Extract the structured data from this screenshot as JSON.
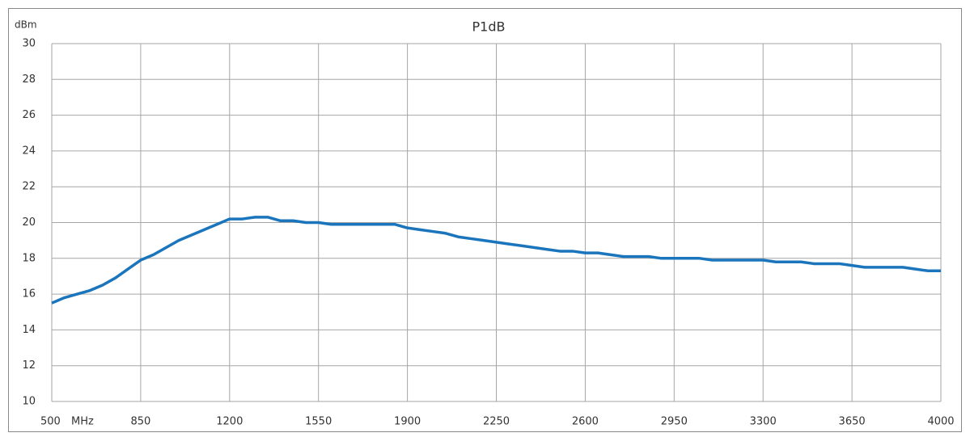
{
  "chart_data": {
    "type": "line",
    "title": "P1dB",
    "y_unit": "dBm",
    "x_unit": "MHz",
    "x": [
      500,
      550,
      600,
      650,
      700,
      750,
      800,
      850,
      900,
      950,
      1000,
      1050,
      1100,
      1150,
      1200,
      1250,
      1300,
      1350,
      1400,
      1450,
      1500,
      1550,
      1600,
      1650,
      1700,
      1750,
      1800,
      1850,
      1900,
      1950,
      2000,
      2050,
      2100,
      2150,
      2200,
      2250,
      2300,
      2350,
      2400,
      2450,
      2500,
      2550,
      2600,
      2650,
      2700,
      2750,
      2800,
      2850,
      2900,
      2950,
      3000,
      3050,
      3100,
      3150,
      3200,
      3250,
      3300,
      3350,
      3400,
      3450,
      3500,
      3550,
      3600,
      3650,
      3700,
      3750,
      3800,
      3850,
      3900,
      3950,
      4000
    ],
    "series": [
      {
        "name": "P1dB",
        "color": "#1a75bc",
        "values": [
          15.5,
          15.8,
          16.0,
          16.2,
          16.5,
          16.9,
          17.4,
          17.9,
          18.2,
          18.6,
          19.0,
          19.3,
          19.6,
          19.9,
          20.2,
          20.2,
          20.3,
          20.3,
          20.1,
          20.1,
          20.0,
          20.0,
          19.9,
          19.9,
          19.9,
          19.9,
          19.9,
          19.9,
          19.7,
          19.6,
          19.5,
          19.4,
          19.2,
          19.1,
          19.0,
          18.9,
          18.8,
          18.7,
          18.6,
          18.5,
          18.4,
          18.4,
          18.3,
          18.3,
          18.2,
          18.1,
          18.1,
          18.1,
          18.0,
          18.0,
          18.0,
          18.0,
          17.9,
          17.9,
          17.9,
          17.9,
          17.9,
          17.8,
          17.8,
          17.8,
          17.7,
          17.7,
          17.7,
          17.6,
          17.5,
          17.5,
          17.5,
          17.5,
          17.4,
          17.3,
          17.3
        ]
      }
    ],
    "xlim": [
      500,
      4000
    ],
    "xticks": [
      500,
      850,
      1200,
      1550,
      1900,
      2250,
      2600,
      2950,
      3300,
      3650,
      4000
    ],
    "ylim": [
      10,
      30
    ],
    "yticks": [
      10,
      12,
      14,
      16,
      18,
      20,
      22,
      24,
      26,
      28,
      30
    ],
    "grid": true
  }
}
